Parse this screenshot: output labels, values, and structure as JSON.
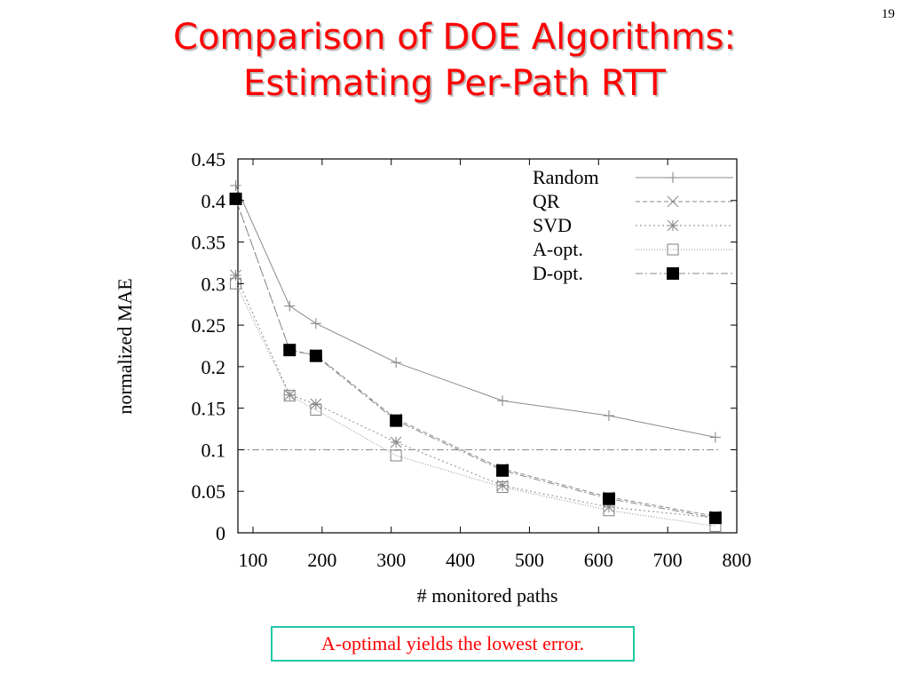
{
  "slide": {
    "title_line1": "Comparison of DOE Algorithms:",
    "title_line2": "Estimating Per-Path RTT",
    "page_number": "19",
    "callout": "A-optimal yields the lowest error."
  },
  "chart_data": {
    "type": "line",
    "title": "",
    "xlabel": "# monitored paths",
    "ylabel": "normalized MAE",
    "xlim": [
      75,
      800
    ],
    "ylim": [
      0,
      0.45
    ],
    "xticks": [
      100,
      200,
      300,
      400,
      500,
      600,
      700,
      800
    ],
    "yticks": [
      0,
      0.05,
      0.1,
      0.15,
      0.2,
      0.25,
      0.3,
      0.35,
      0.4,
      0.45
    ],
    "ytick_labels": [
      "0",
      "0.05",
      "0.1",
      "0.15",
      "0.2",
      "0.25",
      "0.3",
      "0.35",
      "0.4",
      "0.45"
    ],
    "legend_position": "top-right",
    "grid": false,
    "x": [
      75,
      153,
      191,
      307,
      461,
      615,
      769
    ],
    "series": [
      {
        "name": "Random",
        "marker": "plus",
        "dash": "",
        "color": "#8a8a8a",
        "values": [
          0.418,
          0.273,
          0.252,
          0.205,
          0.159,
          0.141,
          0.115
        ]
      },
      {
        "name": "QR",
        "marker": "cross",
        "dash": "5,3",
        "color": "#8a8a8a",
        "values": [
          0.402,
          0.22,
          0.214,
          0.137,
          0.077,
          0.043,
          0.02
        ]
      },
      {
        "name": "SVD",
        "marker": "star",
        "dash": "2,3",
        "color": "#8a8a8a",
        "values": [
          0.31,
          0.166,
          0.155,
          0.109,
          0.057,
          0.031,
          0.018
        ]
      },
      {
        "name": "A-opt.",
        "marker": "square",
        "dash": "1,2",
        "color": "#8a8a8a",
        "values": [
          0.3,
          0.165,
          0.148,
          0.093,
          0.055,
          0.027,
          0.008
        ]
      },
      {
        "name": "D-opt.",
        "marker": "filled-square",
        "dash": "8,3,2,3",
        "color": "#8a8a8a",
        "values": [
          0.402,
          0.22,
          0.213,
          0.135,
          0.075,
          0.041,
          0.018
        ]
      }
    ],
    "reference_lines": [
      {
        "y": 0.1,
        "dash": "8,3,2,3",
        "color": "#8a8a8a"
      }
    ]
  }
}
